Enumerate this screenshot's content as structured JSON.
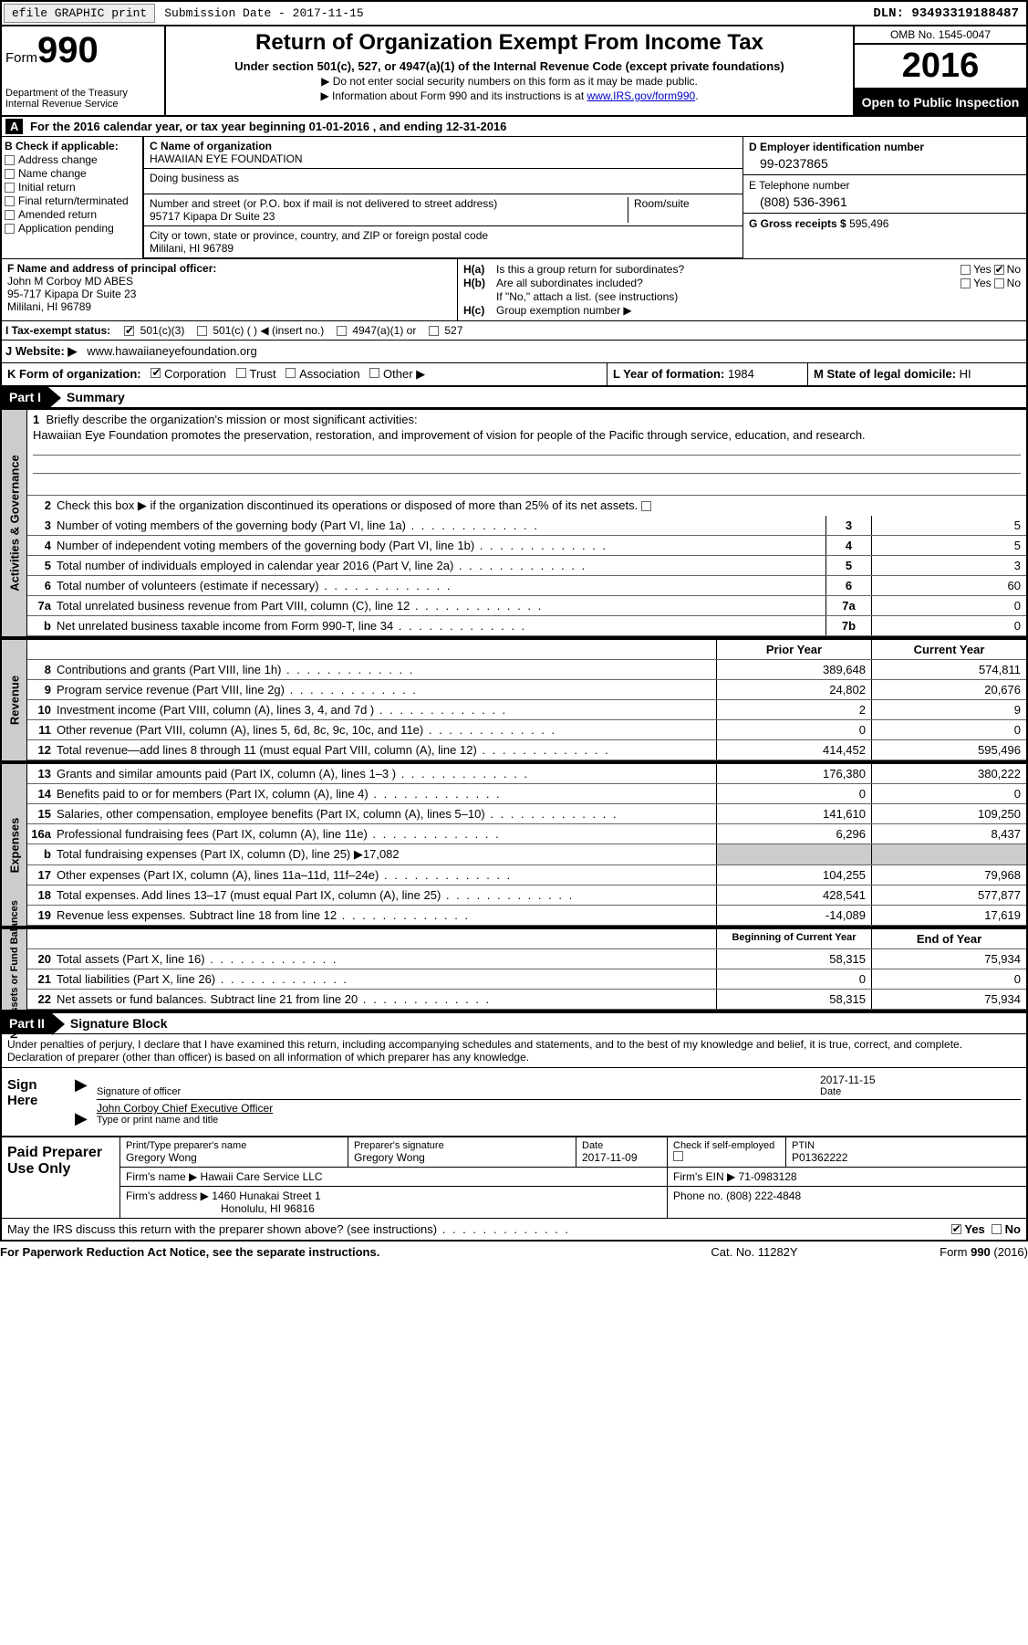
{
  "topbar": {
    "efile": "efile GRAPHIC print",
    "submission": "Submission Date - 2017-11-15",
    "dln": "DLN: 93493319188487"
  },
  "header": {
    "formLabel": "Form",
    "formNumber": "990",
    "dept": "Department of the Treasury",
    "irs": "Internal Revenue Service",
    "title": "Return of Organization Exempt From Income Tax",
    "subtitle": "Under section 501(c), 527, or 4947(a)(1) of the Internal Revenue Code (except private foundations)",
    "note1": "▶ Do not enter social security numbers on this form as it may be made public.",
    "note2a": "▶ Information about Form 990 and its instructions is at ",
    "note2link": "www.IRS.gov/form990",
    "omb": "OMB No. 1545-0047",
    "year": "2016",
    "inspect": "Open to Public Inspection"
  },
  "sectionA": {
    "label": "A",
    "text": "For the 2016 calendar year, or tax year beginning 01-01-2016   , and ending 12-31-2016"
  },
  "sectionB": {
    "header": "B Check if applicable:",
    "items": [
      "Address change",
      "Name change",
      "Initial return",
      "Final return/terminated",
      "Amended return",
      "Application pending"
    ]
  },
  "sectionC": {
    "nameLabel": "C Name of organization",
    "name": "HAWAIIAN EYE FOUNDATION",
    "dbaLabel": "Doing business as",
    "streetLabel": "Number and street (or P.O. box if mail is not delivered to street address)",
    "roomLabel": "Room/suite",
    "street": "95717 Kipapa Dr Suite 23",
    "cityLabel": "City or town, state or province, country, and ZIP or foreign postal code",
    "city": "Mililani, HI  96789"
  },
  "sectionD": {
    "einLabel": "D Employer identification number",
    "ein": "99-0237865",
    "telLabel": "E Telephone number",
    "tel": "(808) 536-3961",
    "grossLabel": "G Gross receipts $",
    "gross": "595,496"
  },
  "sectionF": {
    "label": "F  Name and address of principal officer:",
    "name": "John M Corboy MD ABES",
    "street": "95-717 Kipapa Dr Suite 23",
    "city": "Mililani, HI  96789"
  },
  "sectionH": {
    "ha": "H(a)",
    "haText": "Is this a group return for subordinates?",
    "hb": "H(b)",
    "hbText": "Are all subordinates included?",
    "hbNote": "If \"No,\" attach a list. (see instructions)",
    "hc": "H(c)",
    "hcText": "Group exemption number ▶",
    "yes": "Yes",
    "no": "No"
  },
  "sectionI": {
    "label": "I  Tax-exempt status:",
    "opt1": "501(c)(3)",
    "opt2": "501(c) (   ) ◀ (insert no.)",
    "opt3": "4947(a)(1) or",
    "opt4": "527"
  },
  "sectionJ": {
    "label": "J  Website: ▶",
    "url": "www.hawaiianeyefoundation.org"
  },
  "sectionK": {
    "label": "K Form of organization:",
    "opts": [
      "Corporation",
      "Trust",
      "Association",
      "Other ▶"
    ]
  },
  "sectionL": {
    "label": "L Year of formation:",
    "val": "1984"
  },
  "sectionM": {
    "label": "M State of legal domicile:",
    "val": "HI"
  },
  "part1": {
    "hdr": "Part I",
    "title": "Summary",
    "side1": "Activities & Governance",
    "side2": "Revenue",
    "side3": "Expenses",
    "side4": "Net Assets or Fund Balances",
    "line1Label": "Briefly describe the organization's mission or most significant activities:",
    "line1Text": "Hawaiian Eye Foundation promotes the preservation, restoration, and improvement of vision for people of the Pacific through service, education, and research.",
    "line2": "Check this box ▶       if the organization discontinued its operations or disposed of more than 25% of its net assets.",
    "lines": [
      {
        "n": "3",
        "t": "Number of voting members of the governing body (Part VI, line 1a)",
        "c": "3",
        "v": "5"
      },
      {
        "n": "4",
        "t": "Number of independent voting members of the governing body (Part VI, line 1b)",
        "c": "4",
        "v": "5"
      },
      {
        "n": "5",
        "t": "Total number of individuals employed in calendar year 2016 (Part V, line 2a)",
        "c": "5",
        "v": "3"
      },
      {
        "n": "6",
        "t": "Total number of volunteers (estimate if necessary)",
        "c": "6",
        "v": "60"
      },
      {
        "n": "7a",
        "t": "Total unrelated business revenue from Part VIII, column (C), line 12",
        "c": "7a",
        "v": "0"
      },
      {
        "n": "b",
        "t": "Net unrelated business taxable income from Form 990-T, line 34",
        "c": "7b",
        "v": "0"
      }
    ],
    "priorHdr": "Prior Year",
    "currentHdr": "Current Year",
    "revLines": [
      {
        "n": "8",
        "t": "Contributions and grants (Part VIII, line 1h)",
        "p": "389,648",
        "c": "574,811"
      },
      {
        "n": "9",
        "t": "Program service revenue (Part VIII, line 2g)",
        "p": "24,802",
        "c": "20,676"
      },
      {
        "n": "10",
        "t": "Investment income (Part VIII, column (A), lines 3, 4, and 7d )",
        "p": "2",
        "c": "9"
      },
      {
        "n": "11",
        "t": "Other revenue (Part VIII, column (A), lines 5, 6d, 8c, 9c, 10c, and 11e)",
        "p": "0",
        "c": "0"
      },
      {
        "n": "12",
        "t": "Total revenue—add lines 8 through 11 (must equal Part VIII, column (A), line 12)",
        "p": "414,452",
        "c": "595,496"
      }
    ],
    "expLines": [
      {
        "n": "13",
        "t": "Grants and similar amounts paid (Part IX, column (A), lines 1–3 )",
        "p": "176,380",
        "c": "380,222"
      },
      {
        "n": "14",
        "t": "Benefits paid to or for members (Part IX, column (A), line 4)",
        "p": "0",
        "c": "0"
      },
      {
        "n": "15",
        "t": "Salaries, other compensation, employee benefits (Part IX, column (A), lines 5–10)",
        "p": "141,610",
        "c": "109,250"
      },
      {
        "n": "16a",
        "t": "Professional fundraising fees (Part IX, column (A), line 11e)",
        "p": "6,296",
        "c": "8,437"
      },
      {
        "n": "b",
        "t": "Total fundraising expenses (Part IX, column (D), line 25) ▶17,082",
        "p": "",
        "c": "",
        "shade": true
      },
      {
        "n": "17",
        "t": "Other expenses (Part IX, column (A), lines 11a–11d, 11f–24e)",
        "p": "104,255",
        "c": "79,968"
      },
      {
        "n": "18",
        "t": "Total expenses. Add lines 13–17 (must equal Part IX, column (A), line 25)",
        "p": "428,541",
        "c": "577,877"
      },
      {
        "n": "19",
        "t": "Revenue less expenses. Subtract line 18 from line 12",
        "p": "-14,089",
        "c": "17,619"
      }
    ],
    "bocHdr": "Beginning of Current Year",
    "eoyHdr": "End of Year",
    "netLines": [
      {
        "n": "20",
        "t": "Total assets (Part X, line 16)",
        "p": "58,315",
        "c": "75,934"
      },
      {
        "n": "21",
        "t": "Total liabilities (Part X, line 26)",
        "p": "0",
        "c": "0"
      },
      {
        "n": "22",
        "t": "Net assets or fund balances. Subtract line 21 from line 20",
        "p": "58,315",
        "c": "75,934"
      }
    ]
  },
  "part2": {
    "hdr": "Part II",
    "title": "Signature Block",
    "disclaimer": "Under penalties of perjury, I declare that I have examined this return, including accompanying schedules and statements, and to the best of my knowledge and belief, it is true, correct, and complete. Declaration of preparer (other than officer) is based on all information of which preparer has any knowledge."
  },
  "sign": {
    "label": "Sign Here",
    "sigLabel": "Signature of officer",
    "date": "2017-11-15",
    "dateLabel": "Date",
    "name": "John Corboy  Chief Executive Officer",
    "nameLabel": "Type or print name and title"
  },
  "prep": {
    "label": "Paid Preparer Use Only",
    "nameLabel": "Print/Type preparer's name",
    "name": "Gregory Wong",
    "sigLabel": "Preparer's signature",
    "sig": "Gregory Wong",
    "pdateLabel": "Date",
    "pdate": "2017-11-09",
    "checkLabel": "Check       if self-employed",
    "ptinLabel": "PTIN",
    "ptin": "P01362222",
    "firmNameLabel": "Firm's name     ▶",
    "firmName": "Hawaii Care Service LLC",
    "firmEinLabel": "Firm's EIN ▶",
    "firmEin": "71-0983128",
    "firmAddrLabel": "Firm's address ▶",
    "firmAddr1": "1460 Hunakai Street 1",
    "firmAddr2": "Honolulu, HI  96816",
    "phoneLabel": "Phone no.",
    "phone": "(808) 222-4848"
  },
  "discuss": {
    "text": "May the IRS discuss this return with the preparer shown above? (see instructions)",
    "yes": "Yes",
    "no": "No"
  },
  "footer": {
    "left": "For Paperwork Reduction Act Notice, see the separate instructions.",
    "center": "Cat. No. 11282Y",
    "right": "Form 990 (2016)"
  },
  "colors": {
    "shade": "#cccccc",
    "link": "#0000cc"
  }
}
